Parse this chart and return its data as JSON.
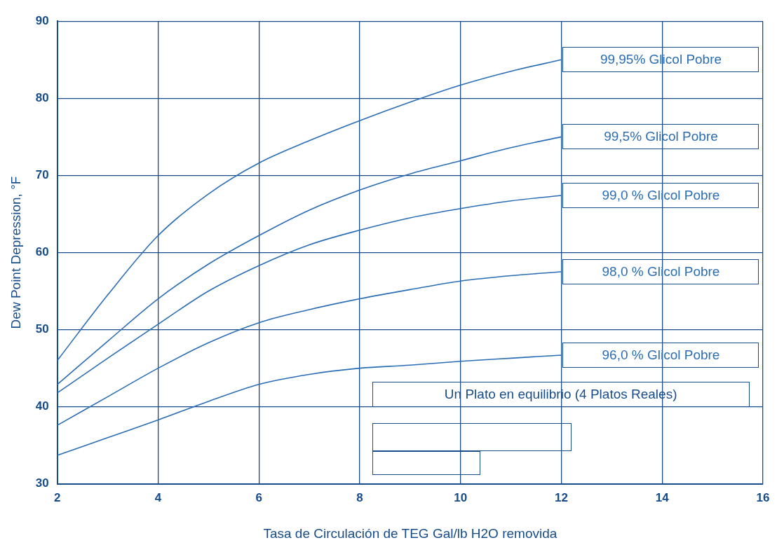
{
  "chart_data": {
    "type": "line",
    "xlabel": "Tasa de Circulación de TEG Gal/lb H2O removida",
    "ylabel": "Dew Point Depression, °F",
    "x": [
      2,
      3,
      4,
      5,
      6,
      7,
      8,
      9,
      10,
      11,
      12
    ],
    "series": [
      {
        "name": "99,95% Glicol Pobre",
        "color": "#2a6db5",
        "values": [
          46,
          54.5,
          62.2,
          67.6,
          71.6,
          74.5,
          77.1,
          79.5,
          81.7,
          83.5,
          85
        ]
      },
      {
        "name": "99,5% Glicol Pobre",
        "color": "#2a6db5",
        "values": [
          42.9,
          48.5,
          54,
          58.5,
          62.2,
          65.5,
          68.1,
          70.2,
          71.9,
          73.6,
          75
        ]
      },
      {
        "name": "99,0 % Glicol Pobre",
        "color": "#2a6db5",
        "values": [
          41.8,
          46.3,
          50.7,
          55,
          58.3,
          61,
          62.9,
          64.5,
          65.7,
          66.7,
          67.4
        ]
      },
      {
        "name": "98,0 % Glicol Pobre",
        "color": "#2a6db5",
        "values": [
          37.6,
          41.3,
          45,
          48.3,
          50.9,
          52.6,
          54,
          55.2,
          56.3,
          57,
          57.5
        ]
      },
      {
        "name": "96,0 % Glicol Pobre",
        "color": "#2a6db5",
        "values": [
          33.7,
          36,
          38.3,
          40.7,
          42.9,
          44.2,
          45,
          45.4,
          45.9,
          46.3,
          46.7
        ]
      }
    ],
    "annotations": [
      "Un Plato en equilibrio (4 Platos Reales)"
    ],
    "xlim": [
      2,
      16
    ],
    "xticks": [
      2,
      4,
      6,
      8,
      10,
      12,
      14,
      16
    ],
    "ylim": [
      30,
      90
    ],
    "yticks": [
      30,
      40,
      50,
      60,
      70,
      80,
      90
    ],
    "grid": true,
    "legend": false,
    "marker": "none",
    "line_style": "solid"
  }
}
